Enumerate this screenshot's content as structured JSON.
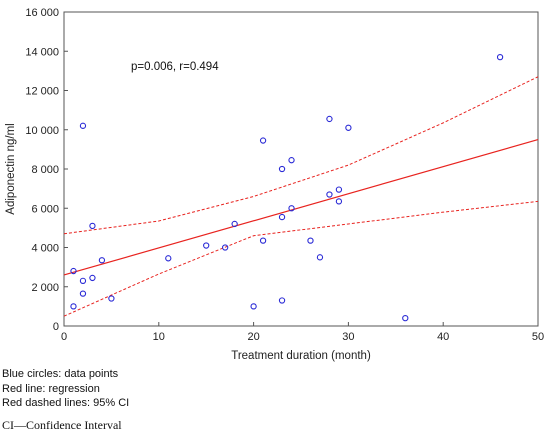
{
  "chart_data": {
    "type": "scatter",
    "xlabel": "Treatment duration (month)",
    "ylabel": "Adiponectin ng/ml",
    "xlim": [
      0,
      50
    ],
    "ylim": [
      0,
      16000
    ],
    "x_ticks": [
      0,
      10,
      20,
      30,
      40,
      50
    ],
    "y_ticks": [
      0,
      2000,
      4000,
      6000,
      8000,
      10000,
      12000,
      14000,
      16000
    ],
    "y_tick_labels": [
      "0",
      "2 000",
      "4 000",
      "6 000",
      "8 000",
      "10 000",
      "12 000",
      "14 000",
      "16 000"
    ],
    "grid": false,
    "annotation": "p=0.006, r=0.494",
    "points": [
      {
        "x": 1,
        "y": 1000
      },
      {
        "x": 1,
        "y": 2800
      },
      {
        "x": 2,
        "y": 1650
      },
      {
        "x": 2,
        "y": 2300
      },
      {
        "x": 2,
        "y": 10200
      },
      {
        "x": 3,
        "y": 2450
      },
      {
        "x": 3,
        "y": 5100
      },
      {
        "x": 4,
        "y": 3350
      },
      {
        "x": 5,
        "y": 1400
      },
      {
        "x": 11,
        "y": 3450
      },
      {
        "x": 15,
        "y": 4100
      },
      {
        "x": 17,
        "y": 4000
      },
      {
        "x": 18,
        "y": 5200
      },
      {
        "x": 20,
        "y": 1000
      },
      {
        "x": 21,
        "y": 4350
      },
      {
        "x": 21,
        "y": 9450
      },
      {
        "x": 23,
        "y": 1300
      },
      {
        "x": 23,
        "y": 5550
      },
      {
        "x": 23,
        "y": 8000
      },
      {
        "x": 24,
        "y": 6000
      },
      {
        "x": 24,
        "y": 8450
      },
      {
        "x": 26,
        "y": 4350
      },
      {
        "x": 27,
        "y": 3500
      },
      {
        "x": 28,
        "y": 6700
      },
      {
        "x": 28,
        "y": 10550
      },
      {
        "x": 29,
        "y": 6350
      },
      {
        "x": 29,
        "y": 6950
      },
      {
        "x": 30,
        "y": 10100
      },
      {
        "x": 36,
        "y": 400
      },
      {
        "x": 46,
        "y": 13700
      }
    ],
    "regression": {
      "x": [
        0,
        50
      ],
      "y": [
        2600,
        9500
      ],
      "color": "#e8231f"
    },
    "ci_upper": {
      "x": [
        0,
        10,
        20,
        30,
        40,
        50
      ],
      "y": [
        4700,
        5350,
        6600,
        8200,
        10350,
        12700
      ],
      "color": "#e8231f"
    },
    "ci_lower": {
      "x": [
        0,
        10,
        20,
        30,
        40,
        50
      ],
      "y": [
        500,
        2650,
        4600,
        5200,
        5800,
        6350
      ],
      "color": "#e8231f"
    },
    "point_color": "#2b2bd6",
    "notes": [
      "Blue circles: data points",
      "Red line: regression",
      "Red dashed lines: 95% CI"
    ]
  },
  "caption": "CI—Confidence Interval"
}
